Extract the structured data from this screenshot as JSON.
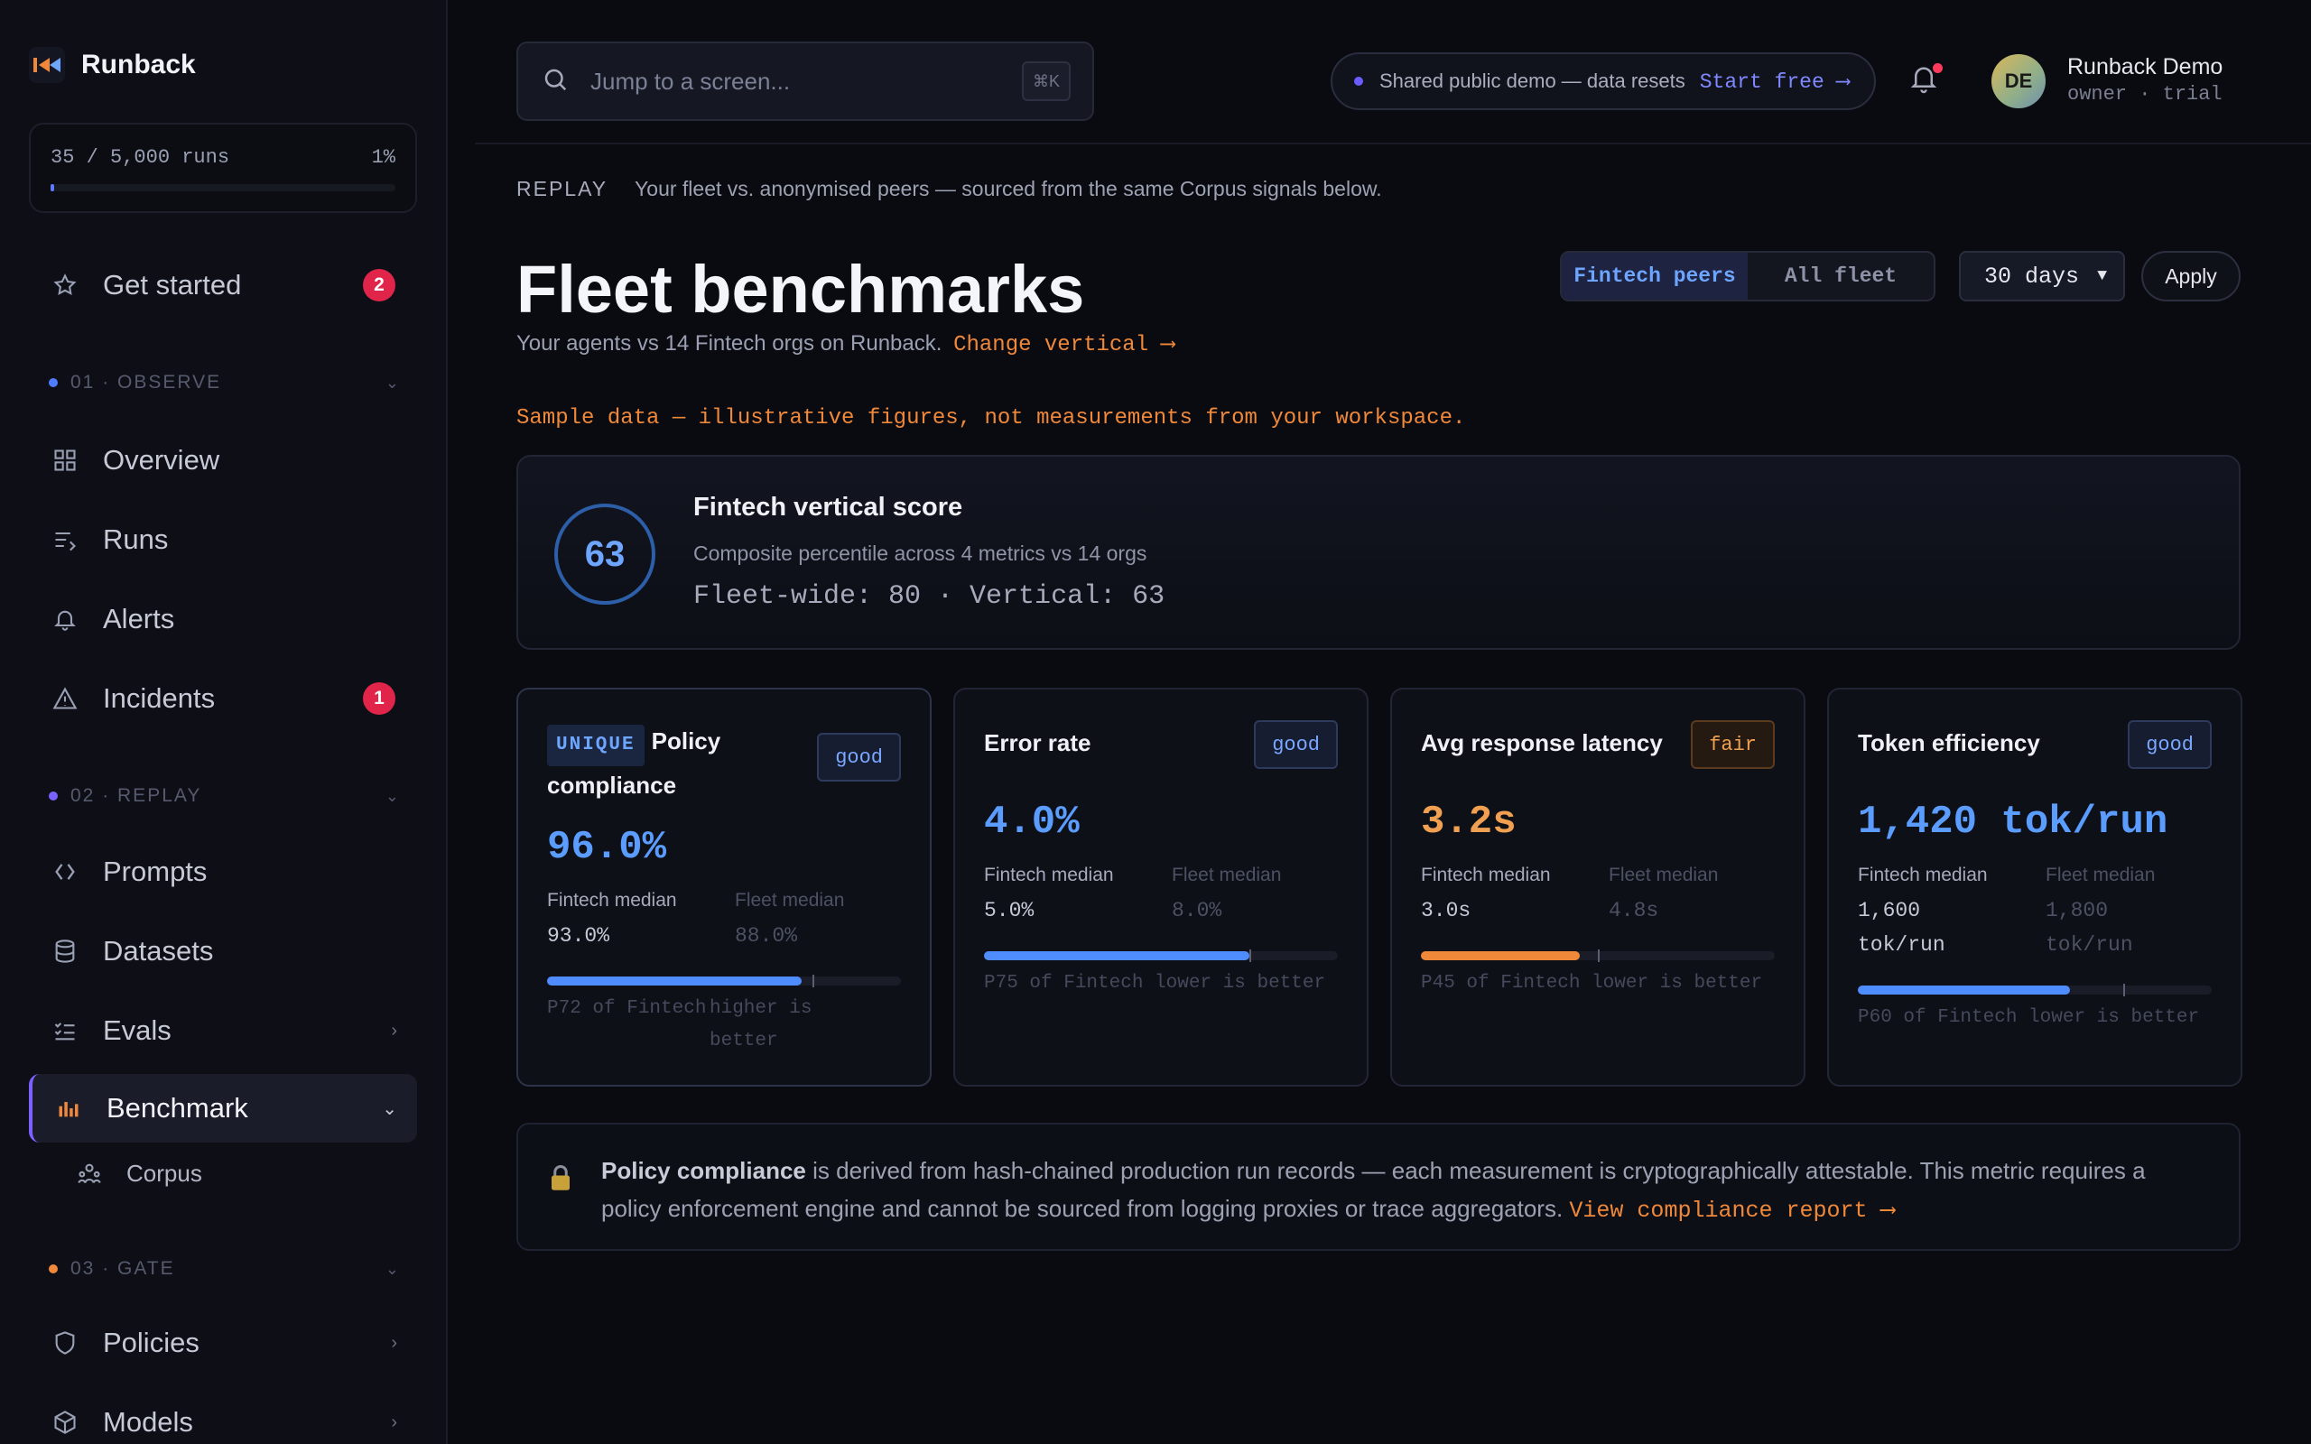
{
  "app": {
    "name": "Runback"
  },
  "usage": {
    "label": "35 / 5,000 runs",
    "percent": "1%",
    "fraction": 0.007
  },
  "nav": {
    "get_started": {
      "label": "Get started",
      "badge": "2"
    },
    "sections": [
      {
        "label": "01 · OBSERVE",
        "color": "#4f7dff"
      },
      {
        "label": "02 · REPLAY",
        "color": "#7b61ff"
      },
      {
        "label": "03 · GATE",
        "color": "#f0883a"
      }
    ],
    "overview": "Overview",
    "runs": "Runs",
    "alerts": "Alerts",
    "incidents": {
      "label": "Incidents",
      "badge": "1"
    },
    "prompts": "Prompts",
    "datasets": "Datasets",
    "evals": "Evals",
    "benchmark": "Benchmark",
    "corpus": "Corpus",
    "policies": "Policies",
    "models": "Models"
  },
  "topbar": {
    "search_placeholder": "Jump to a screen...",
    "search_shortcut": "⌘K",
    "demo_text": "Shared public demo — data resets",
    "demo_link": "Start free ⟶",
    "user_initials": "DE",
    "user_name": "Runback Demo",
    "user_role": "owner · trial"
  },
  "page": {
    "crumb_tag": "REPLAY",
    "crumb_text": "Your fleet vs. anonymised peers — sourced from the same Corpus signals below.",
    "title": "Fleet benchmarks",
    "subtitle": "Your agents vs 14 Fintech orgs on Runback.",
    "change_link": "Change vertical ⟶",
    "segments": [
      "Fintech peers",
      "All fleet"
    ],
    "period": "30 days",
    "apply": "Apply",
    "sample_note": "Sample data — illustrative figures, not measurements from your workspace."
  },
  "score": {
    "value": "63",
    "title": "Fintech vertical score",
    "subtitle": "Composite percentile across 4 metrics vs 14 orgs",
    "detail": "Fleet-wide: 80 · Vertical: 63"
  },
  "metrics": [
    {
      "tag": "UNIQUE",
      "title": "Policy compliance",
      "rating": "good",
      "value": "96.0%",
      "value_color": "#5b9cff",
      "peer_label": "Fintech median",
      "peer_value": "93.0%",
      "fleet_label": "Fleet median",
      "fleet_value": "88.0%",
      "bar_fraction": 0.72,
      "bar_color": "#4f8dff",
      "marker_fraction": 0.75,
      "percentile": "P72 of Fintech",
      "direction": "higher is better"
    },
    {
      "tag": "",
      "title": "Error rate",
      "rating": "good",
      "value": "4.0%",
      "value_color": "#5b9cff",
      "peer_label": "Fintech median",
      "peer_value": "5.0%",
      "fleet_label": "Fleet median",
      "fleet_value": "8.0%",
      "bar_fraction": 0.75,
      "bar_color": "#4f8dff",
      "marker_fraction": 0.75,
      "percentile": "P75 of Fintech",
      "direction": "lower is better"
    },
    {
      "tag": "",
      "title": "Avg response latency",
      "rating": "fair",
      "value": "3.2s",
      "value_color": "#f0a050",
      "peer_label": "Fintech median",
      "peer_value": "3.0s",
      "fleet_label": "Fleet median",
      "fleet_value": "4.8s",
      "bar_fraction": 0.45,
      "bar_color": "#f0883a",
      "marker_fraction": 0.5,
      "percentile": "P45 of Fintech",
      "direction": "lower is better"
    },
    {
      "tag": "",
      "title": "Token efficiency",
      "rating": "good",
      "value": "1,420 tok/run",
      "value_color": "#5b9cff",
      "peer_label": "Fintech median",
      "peer_value": "1,600 tok/run",
      "fleet_label": "Fleet median",
      "fleet_value": "1,800 tok/run",
      "bar_fraction": 0.6,
      "bar_color": "#4f8dff",
      "marker_fraction": 0.75,
      "percentile": "P60 of Fintech",
      "direction": "lower is better"
    }
  ],
  "note": {
    "bold": "Policy compliance",
    "text": "is derived from hash-chained production run records — each measurement is cryptographically attestable. This metric requires a policy enforcement engine and cannot be sourced from logging proxies or trace aggregators.",
    "link": "View compliance report ⟶"
  }
}
